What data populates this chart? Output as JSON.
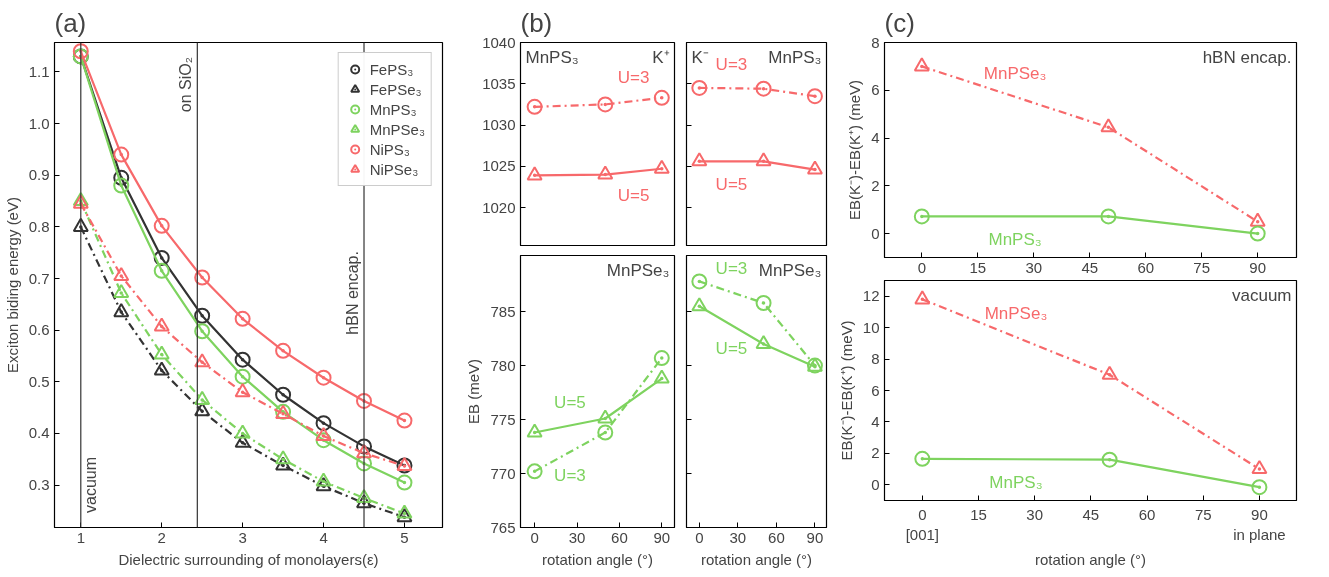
{
  "chart_data": [
    {
      "type": "line",
      "title": "(a)",
      "xlabel": "Dielectric surrounding of monolayers(ε)",
      "ylabel": "Exciton biding energy (eV)",
      "x": [
        1,
        1.5,
        2,
        2.5,
        3,
        3.5,
        4,
        4.5,
        5
      ],
      "xlim": [
        0.675,
        5.47
      ],
      "xticks": [
        1,
        2,
        3,
        4,
        5
      ],
      "ylim": [
        0.218,
        1.157
      ],
      "yticks": [
        0.3,
        0.4,
        0.5,
        0.6,
        0.7,
        0.8,
        0.9,
        {
          "value": 1.0,
          "label": "1.0"
        },
        1.1
      ],
      "legend": "top right",
      "series": [
        {
          "name": "FePS₃",
          "color": "#333333",
          "marker": "circle",
          "line_style": "solid",
          "values": [
            1.13,
            0.895,
            0.74,
            0.628,
            0.543,
            0.475,
            0.42,
            0.375,
            0.338
          ]
        },
        {
          "name": "FePSe₃",
          "color": "#333333",
          "marker": "triangle",
          "line_style": "dashed",
          "values": [
            0.8,
            0.635,
            0.522,
            0.443,
            0.382,
            0.338,
            0.298,
            0.265,
            0.238
          ]
        },
        {
          "name": "MnPS₃",
          "color": "#7ed35f",
          "marker": "circle",
          "line_style": "solid",
          "values": [
            1.13,
            0.88,
            0.715,
            0.598,
            0.51,
            0.442,
            0.387,
            0.342,
            0.305
          ]
        },
        {
          "name": "MnPSe₃",
          "color": "#7ed35f",
          "marker": "triangle",
          "line_style": "dashed",
          "values": [
            0.85,
            0.672,
            0.553,
            0.465,
            0.4,
            0.35,
            0.307,
            0.275,
            0.245
          ]
        },
        {
          "name": "NiPS₃",
          "color": "#f7696b",
          "marker": "circle",
          "line_style": "solid",
          "values": [
            1.14,
            0.94,
            0.802,
            0.702,
            0.622,
            0.56,
            0.508,
            0.463,
            0.425
          ]
        },
        {
          "name": "NiPSe₃",
          "color": "#f7696b",
          "marker": "triangle",
          "line_style": "dashed",
          "values": [
            0.845,
            0.705,
            0.607,
            0.538,
            0.48,
            0.438,
            0.395,
            0.362,
            0.337
          ]
        }
      ],
      "ref_lines": [
        {
          "axis": "x",
          "value": 1,
          "label": "vacuum"
        },
        {
          "axis": "x",
          "value": 2.44,
          "label": "on SiO₂"
        },
        {
          "axis": "x",
          "value": 4.5,
          "label": "hBN encap."
        }
      ]
    },
    {
      "type": "line",
      "title": "(b)",
      "x": [
        0,
        50,
        90
      ],
      "xlim": [
        -10,
        99
      ],
      "ylim": [
        1015.4,
        1040
      ],
      "yticks": [
        1020,
        1025,
        1030,
        1035,
        1040
      ],
      "tick_labels": "y",
      "series": [
        {
          "name": "U=3",
          "color": "#f7696b",
          "marker": "circle",
          "line_style": "dashed",
          "values": [
            1032.2,
            1032.5,
            1033.3
          ]
        },
        {
          "name": "U=5",
          "color": "#f7696b",
          "marker": "triangle",
          "line_style": "solid",
          "values": [
            1023.9,
            1024.0,
            1024.7
          ]
        }
      ],
      "annotations": [
        "K⁺",
        "MnPS₃"
      ]
    },
    {
      "type": "line",
      "x": [
        0,
        50,
        90
      ],
      "xlim": [
        -10,
        99
      ],
      "ylim": [
        1015.4,
        1040
      ],
      "yticks": [
        1020,
        1025,
        1030,
        1035,
        1040
      ],
      "tick_labels": false,
      "series": [
        {
          "name": "U=3",
          "color": "#f7696b",
          "marker": "circle",
          "line_style": "dashed",
          "values": [
            1034.5,
            1034.4,
            1033.5
          ]
        },
        {
          "name": "U=5",
          "color": "#f7696b",
          "marker": "triangle",
          "line_style": "solid",
          "values": [
            1025.6,
            1025.6,
            1024.6
          ]
        }
      ],
      "annotations": [
        "MnPS₃",
        "K⁻"
      ]
    },
    {
      "type": "line",
      "ylabel": "EB (meV)",
      "xlabel": "rotation angle (°)",
      "x": [
        0,
        50,
        90
      ],
      "xlim": [
        -10,
        99
      ],
      "xticks": [
        0,
        30,
        60,
        90
      ],
      "ylim": [
        765,
        790.2
      ],
      "yticks": [
        765,
        770,
        775,
        780,
        785
      ],
      "series": [
        {
          "name": "U=3",
          "color": "#7ed35f",
          "marker": "circle",
          "line_style": "dashed",
          "values": [
            770.2,
            773.8,
            780.7
          ]
        },
        {
          "name": "U=5",
          "color": "#7ed35f",
          "marker": "triangle",
          "line_style": "solid",
          "values": [
            773.8,
            775.1,
            778.8
          ]
        }
      ],
      "annotations": [
        "MnPSe₃"
      ]
    },
    {
      "type": "line",
      "xlabel": "rotation angle (°)",
      "x": [
        0,
        50,
        90
      ],
      "xlim": [
        -10,
        99
      ],
      "xticks": [
        0,
        30,
        60,
        90
      ],
      "ylim": [
        765,
        790.2
      ],
      "yticks": [
        765,
        770,
        775,
        780,
        785
      ],
      "tick_labels": "x",
      "series": [
        {
          "name": "U=3",
          "color": "#7ed35f",
          "marker": "circle",
          "line_style": "dashed",
          "values": [
            787.8,
            785.8,
            780.0
          ]
        },
        {
          "name": "U=5",
          "color": "#7ed35f",
          "marker": "triangle",
          "line_style": "solid",
          "values": [
            785.5,
            782.0,
            779.9
          ]
        }
      ],
      "annotations": [
        "MnPSe₃"
      ]
    },
    {
      "type": "line",
      "title": "(c)",
      "ylabel": "EB(K⁻)-EB(K⁺) (meV)",
      "x": [
        0,
        50,
        90
      ],
      "xlim": [
        -10,
        100.4
      ],
      "xticks": [
        0,
        15,
        30,
        45,
        60,
        75,
        90
      ],
      "ylim": [
        -1,
        8
      ],
      "yticks": [
        0,
        2,
        4,
        6,
        8
      ],
      "series": [
        {
          "name": "MnPSe₃",
          "color": "#f7696b",
          "marker": "triangle",
          "line_style": "dashed",
          "values": [
            7.0,
            4.45,
            0.5
          ]
        },
        {
          "name": "MnPS₃",
          "color": "#7ed35f",
          "marker": "circle",
          "line_style": "solid",
          "values": [
            0.72,
            0.72,
            0.0
          ]
        }
      ],
      "annotations": [
        "hBN encap."
      ]
    },
    {
      "type": "line",
      "ylabel": "EB(K⁻)-EB(K⁺) (meV)",
      "xlabel": "rotation angle (°)",
      "x": [
        0,
        50,
        90
      ],
      "xlim": [
        -10.1,
        99.9
      ],
      "xticks": [
        {
          "value": 0,
          "label": "0\n[001]"
        },
        15,
        30,
        45,
        60,
        75,
        {
          "value": 90,
          "label": "90\nin plane"
        }
      ],
      "ylim": [
        -1,
        13
      ],
      "yticks": [
        0,
        2,
        4,
        6,
        8,
        10,
        12
      ],
      "series": [
        {
          "name": "MnPSe₃",
          "color": "#f7696b",
          "marker": "triangle",
          "line_style": "dashed",
          "values": [
            11.8,
            7.0,
            1.0
          ]
        },
        {
          "name": "MnPS₃",
          "color": "#7ed35f",
          "marker": "circle",
          "line_style": "solid",
          "values": [
            1.65,
            1.6,
            -0.15
          ]
        }
      ],
      "annotations": [
        "vacuum"
      ]
    }
  ]
}
